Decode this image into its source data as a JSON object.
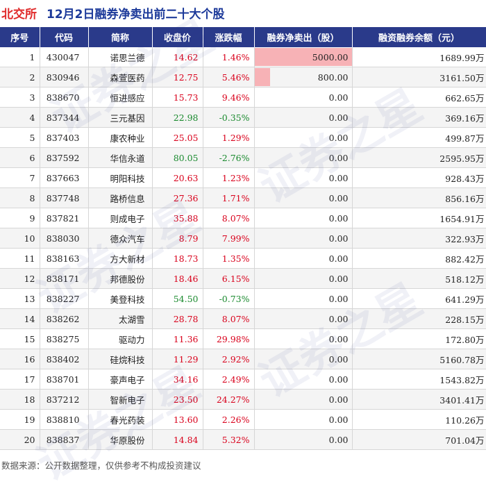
{
  "header": {
    "market": "北交所",
    "title": "12月2日融券净卖出前二十大个股"
  },
  "watermark": "证券之星",
  "footer": {
    "source": "数据来源：公开数据整理，仅供参考不构成投资建议"
  },
  "colors": {
    "header_bg": "#2a3a8a",
    "up": "#d9001b",
    "down": "#1a8a2e",
    "bar": "#f7b2b6"
  },
  "chart_data": {
    "type": "table",
    "columns": [
      "序号",
      "代码",
      "简称",
      "收盘价",
      "涨跌幅",
      "融券净卖出（股）",
      "融资融券余额（元）"
    ],
    "net_sell_max": 5000,
    "rows": [
      {
        "idx": "1",
        "code": "430047",
        "name": "诺思兰德",
        "close": "14.62",
        "change": "1.46%",
        "dir": "up",
        "net": "5000.00",
        "net_value": 5000,
        "balance": "1689.99万"
      },
      {
        "idx": "2",
        "code": "830946",
        "name": "森萱医药",
        "close": "12.75",
        "change": "5.46%",
        "dir": "up",
        "net": "800.00",
        "net_value": 800,
        "balance": "3161.50万"
      },
      {
        "idx": "3",
        "code": "838670",
        "name": "恒进感应",
        "close": "15.73",
        "change": "9.46%",
        "dir": "up",
        "net": "0.00",
        "net_value": 0,
        "balance": "662.65万"
      },
      {
        "idx": "4",
        "code": "837344",
        "name": "三元基因",
        "close": "22.98",
        "change": "-0.35%",
        "dir": "down",
        "net": "0.00",
        "net_value": 0,
        "balance": "369.16万"
      },
      {
        "idx": "5",
        "code": "837403",
        "name": "康农种业",
        "close": "25.05",
        "change": "1.29%",
        "dir": "up",
        "net": "0.00",
        "net_value": 0,
        "balance": "499.87万"
      },
      {
        "idx": "6",
        "code": "837592",
        "name": "华信永道",
        "close": "80.05",
        "change": "-2.76%",
        "dir": "down",
        "net": "0.00",
        "net_value": 0,
        "balance": "2595.95万"
      },
      {
        "idx": "7",
        "code": "837663",
        "name": "明阳科技",
        "close": "20.63",
        "change": "1.23%",
        "dir": "up",
        "net": "0.00",
        "net_value": 0,
        "balance": "928.43万"
      },
      {
        "idx": "8",
        "code": "837748",
        "name": "路桥信息",
        "close": "27.36",
        "change": "1.71%",
        "dir": "up",
        "net": "0.00",
        "net_value": 0,
        "balance": "856.16万"
      },
      {
        "idx": "9",
        "code": "837821",
        "name": "则成电子",
        "close": "35.88",
        "change": "8.07%",
        "dir": "up",
        "net": "0.00",
        "net_value": 0,
        "balance": "1654.91万"
      },
      {
        "idx": "10",
        "code": "838030",
        "name": "德众汽车",
        "close": "8.79",
        "change": "7.99%",
        "dir": "up",
        "net": "0.00",
        "net_value": 0,
        "balance": "322.93万"
      },
      {
        "idx": "11",
        "code": "838163",
        "name": "方大新材",
        "close": "18.73",
        "change": "1.35%",
        "dir": "up",
        "net": "0.00",
        "net_value": 0,
        "balance": "882.42万"
      },
      {
        "idx": "12",
        "code": "838171",
        "name": "邦德股份",
        "close": "18.46",
        "change": "6.15%",
        "dir": "up",
        "net": "0.00",
        "net_value": 0,
        "balance": "518.12万"
      },
      {
        "idx": "13",
        "code": "838227",
        "name": "美登科技",
        "close": "54.50",
        "change": "-0.73%",
        "dir": "down",
        "net": "0.00",
        "net_value": 0,
        "balance": "641.29万"
      },
      {
        "idx": "14",
        "code": "838262",
        "name": "太湖雪",
        "close": "28.78",
        "change": "8.07%",
        "dir": "up",
        "net": "0.00",
        "net_value": 0,
        "balance": "228.15万"
      },
      {
        "idx": "15",
        "code": "838275",
        "name": "驱动力",
        "close": "11.36",
        "change": "29.98%",
        "dir": "up",
        "net": "0.00",
        "net_value": 0,
        "balance": "172.80万"
      },
      {
        "idx": "16",
        "code": "838402",
        "name": "硅烷科技",
        "close": "11.29",
        "change": "2.92%",
        "dir": "up",
        "net": "0.00",
        "net_value": 0,
        "balance": "5160.78万"
      },
      {
        "idx": "17",
        "code": "838701",
        "name": "豪声电子",
        "close": "34.16",
        "change": "2.49%",
        "dir": "up",
        "net": "0.00",
        "net_value": 0,
        "balance": "1543.82万"
      },
      {
        "idx": "18",
        "code": "837212",
        "name": "智新电子",
        "close": "23.50",
        "change": "24.27%",
        "dir": "up",
        "net": "0.00",
        "net_value": 0,
        "balance": "3401.41万"
      },
      {
        "idx": "19",
        "code": "838810",
        "name": "春光药装",
        "close": "13.60",
        "change": "2.26%",
        "dir": "up",
        "net": "0.00",
        "net_value": 0,
        "balance": "110.26万"
      },
      {
        "idx": "20",
        "code": "838837",
        "name": "华原股份",
        "close": "14.84",
        "change": "5.32%",
        "dir": "up",
        "net": "0.00",
        "net_value": 0,
        "balance": "701.04万"
      }
    ]
  }
}
